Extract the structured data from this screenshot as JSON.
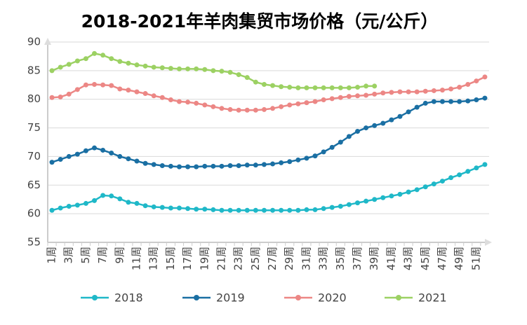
{
  "chart_data": {
    "type": "line",
    "title": "2018-2021年羊肉集贸市场价格（元/公斤）",
    "categories": [
      "1周",
      null,
      "3周",
      null,
      "5周",
      null,
      "7周",
      null,
      "9周",
      null,
      "11周",
      null,
      "13周",
      null,
      "15周",
      null,
      "17周",
      null,
      "19周",
      null,
      "21周",
      null,
      "23周",
      null,
      "25周",
      null,
      "27周",
      null,
      "29周",
      null,
      "31周",
      null,
      "33周",
      null,
      "35周",
      null,
      "37周",
      null,
      "39周",
      null,
      "41周",
      null,
      "43周",
      null,
      "45周",
      null,
      "47周",
      null,
      "49周",
      null,
      "51周",
      null
    ],
    "series": [
      {
        "name": "2018",
        "color": "#1fb8c8",
        "values": [
          60.6,
          61.0,
          61.3,
          61.5,
          61.8,
          62.3,
          63.2,
          63.1,
          62.6,
          62.0,
          61.8,
          61.4,
          61.2,
          61.1,
          61.0,
          61.0,
          60.9,
          60.8,
          60.8,
          60.7,
          60.6,
          60.6,
          60.6,
          60.6,
          60.6,
          60.6,
          60.6,
          60.6,
          60.6,
          60.6,
          60.7,
          60.7,
          60.9,
          61.1,
          61.3,
          61.6,
          61.9,
          62.2,
          62.5,
          62.8,
          63.1,
          63.4,
          63.8,
          64.2,
          64.7,
          65.2,
          65.7,
          66.3,
          66.8,
          67.4,
          68.0,
          68.6
        ]
      },
      {
        "name": "2019",
        "color": "#1a6fa3",
        "values": [
          69.0,
          69.5,
          70.0,
          70.4,
          71.0,
          71.5,
          71.1,
          70.6,
          70.0,
          69.6,
          69.2,
          68.8,
          68.6,
          68.4,
          68.3,
          68.2,
          68.2,
          68.2,
          68.3,
          68.3,
          68.3,
          68.4,
          68.4,
          68.5,
          68.5,
          68.6,
          68.7,
          68.9,
          69.1,
          69.4,
          69.7,
          70.1,
          70.8,
          71.6,
          72.5,
          73.5,
          74.4,
          75.0,
          75.4,
          75.8,
          76.4,
          77.0,
          77.8,
          78.6,
          79.3,
          79.6,
          79.6,
          79.6,
          79.6,
          79.7,
          79.9,
          80.2
        ]
      },
      {
        "name": "2020",
        "color": "#ec8785",
        "values": [
          80.3,
          80.4,
          80.9,
          81.7,
          82.5,
          82.6,
          82.5,
          82.4,
          81.8,
          81.6,
          81.3,
          81.0,
          80.6,
          80.3,
          79.9,
          79.6,
          79.5,
          79.3,
          79.0,
          78.7,
          78.4,
          78.2,
          78.1,
          78.1,
          78.1,
          78.2,
          78.4,
          78.7,
          79.0,
          79.2,
          79.4,
          79.6,
          79.9,
          80.1,
          80.3,
          80.5,
          80.6,
          80.7,
          80.9,
          81.1,
          81.2,
          81.3,
          81.3,
          81.3,
          81.4,
          81.5,
          81.6,
          81.8,
          82.1,
          82.6,
          83.2,
          83.9
        ]
      },
      {
        "name": "2021",
        "color": "#9cd163",
        "values": [
          85.0,
          85.6,
          86.1,
          86.7,
          87.1,
          88.0,
          87.7,
          87.1,
          86.6,
          86.3,
          86.0,
          85.8,
          85.6,
          85.5,
          85.4,
          85.3,
          85.3,
          85.3,
          85.2,
          85.0,
          84.9,
          84.7,
          84.3,
          83.8,
          83.0,
          82.6,
          82.4,
          82.2,
          82.1,
          82.0,
          82.0,
          82.0,
          82.0,
          82.0,
          82.0,
          82.0,
          82.1,
          82.3,
          82.3,
          null,
          null,
          null,
          null,
          null,
          null,
          null,
          null,
          null,
          null,
          null,
          null,
          null
        ]
      }
    ],
    "ylim": [
      55,
      90
    ],
    "yticks": [
      55,
      60,
      65,
      70,
      75,
      80,
      85,
      90
    ],
    "grid": true,
    "legend": "bottom"
  }
}
